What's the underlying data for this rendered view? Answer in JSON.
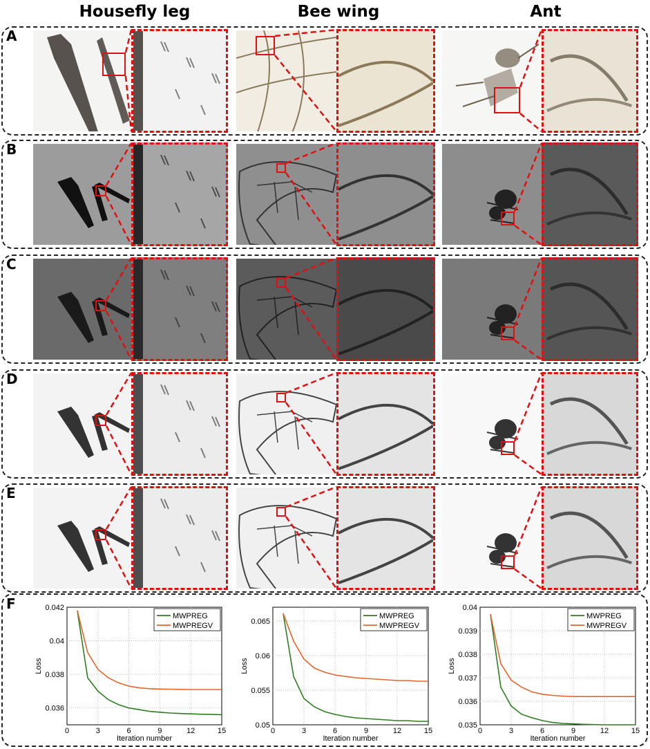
{
  "columns": [
    "Housefly leg",
    "Bee wing",
    "Ant"
  ],
  "rows": [
    {
      "label": "A",
      "style": "photo"
    },
    {
      "label": "B",
      "style": "gray"
    },
    {
      "label": "C",
      "style": "dark"
    },
    {
      "label": "D",
      "style": "light"
    },
    {
      "label": "E",
      "style": "light"
    }
  ],
  "panel_f": {
    "label": "F"
  },
  "colors": {
    "dashed_red": "#e01010",
    "mwpreg": "#2e7d1e",
    "mwpregv": "#e8632a"
  },
  "chart_data": [
    {
      "type": "line",
      "xlabel": "Iteration number",
      "ylabel": "Loss",
      "xlim": [
        0,
        15
      ],
      "ylim": [
        0.035,
        0.042
      ],
      "xticks": [
        0,
        3,
        6,
        9,
        12,
        15
      ],
      "yticks": [
        0.036,
        0.038,
        0.04,
        0.042
      ],
      "ytick_labels": [
        "0.036",
        "0.038",
        "0.04",
        "0.042"
      ],
      "grid": true,
      "legend": "top-right",
      "x": [
        1,
        2,
        3,
        4,
        5,
        6,
        7,
        8,
        9,
        10,
        11,
        12,
        13,
        14,
        15
      ],
      "series": [
        {
          "name": "MWPREG",
          "values": [
            0.0418,
            0.0378,
            0.037,
            0.0365,
            0.0362,
            0.036,
            0.0359,
            0.0358,
            0.03575,
            0.0357,
            0.03567,
            0.03565,
            0.03563,
            0.03562,
            0.0356
          ]
        },
        {
          "name": "MWPREGV",
          "values": [
            0.0418,
            0.0393,
            0.0383,
            0.0378,
            0.0375,
            0.0373,
            0.0372,
            0.03715,
            0.03713,
            0.03712,
            0.03711,
            0.0371,
            0.0371,
            0.0371,
            0.0371
          ]
        }
      ]
    },
    {
      "type": "line",
      "xlabel": "Iteration number",
      "ylabel": "Loss",
      "xlim": [
        0,
        15
      ],
      "ylim": [
        0.05,
        0.067
      ],
      "xticks": [
        0,
        3,
        6,
        9,
        12,
        15
      ],
      "yticks": [
        0.05,
        0.055,
        0.06,
        0.065
      ],
      "ytick_labels": [
        "0.05",
        "0.055",
        "0.06",
        "0.065"
      ],
      "grid": true,
      "legend": "top-right",
      "x": [
        1,
        2,
        3,
        4,
        5,
        6,
        7,
        8,
        9,
        10,
        11,
        12,
        13,
        14,
        15
      ],
      "series": [
        {
          "name": "MWPREG",
          "values": [
            0.0661,
            0.057,
            0.0538,
            0.0526,
            0.0519,
            0.0515,
            0.0512,
            0.051,
            0.0509,
            0.0508,
            0.0507,
            0.0506,
            0.0506,
            0.0505,
            0.0505
          ]
        },
        {
          "name": "MWPREGV",
          "values": [
            0.0661,
            0.0621,
            0.0595,
            0.0582,
            0.0576,
            0.0572,
            0.057,
            0.0568,
            0.0567,
            0.0566,
            0.0565,
            0.0564,
            0.0564,
            0.0563,
            0.0563
          ]
        }
      ]
    },
    {
      "type": "line",
      "xlabel": "Iteration number",
      "ylabel": "Loss",
      "xlim": [
        0,
        15
      ],
      "ylim": [
        0.035,
        0.04
      ],
      "xticks": [
        0,
        3,
        6,
        9,
        12,
        15
      ],
      "yticks": [
        0.035,
        0.036,
        0.037,
        0.038,
        0.039,
        0.04
      ],
      "ytick_labels": [
        "0.035",
        "0.036",
        "0.037",
        "0.038",
        "0.039",
        "0.04"
      ],
      "grid": true,
      "legend": "top-right",
      "x": [
        1,
        2,
        3,
        4,
        5,
        6,
        7,
        8,
        9,
        10,
        11,
        12,
        13,
        14,
        15
      ],
      "series": [
        {
          "name": "MWPREG",
          "values": [
            0.0397,
            0.0366,
            0.0358,
            0.03545,
            0.0353,
            0.03518,
            0.0351,
            0.03506,
            0.03504,
            0.03502,
            0.03501,
            0.035,
            0.035,
            0.035,
            0.035
          ]
        },
        {
          "name": "MWPREGV",
          "values": [
            0.0397,
            0.0376,
            0.0369,
            0.0366,
            0.0364,
            0.0363,
            0.03625,
            0.03622,
            0.0362,
            0.0362,
            0.0362,
            0.0362,
            0.0362,
            0.0362,
            0.0362
          ]
        }
      ]
    }
  ]
}
